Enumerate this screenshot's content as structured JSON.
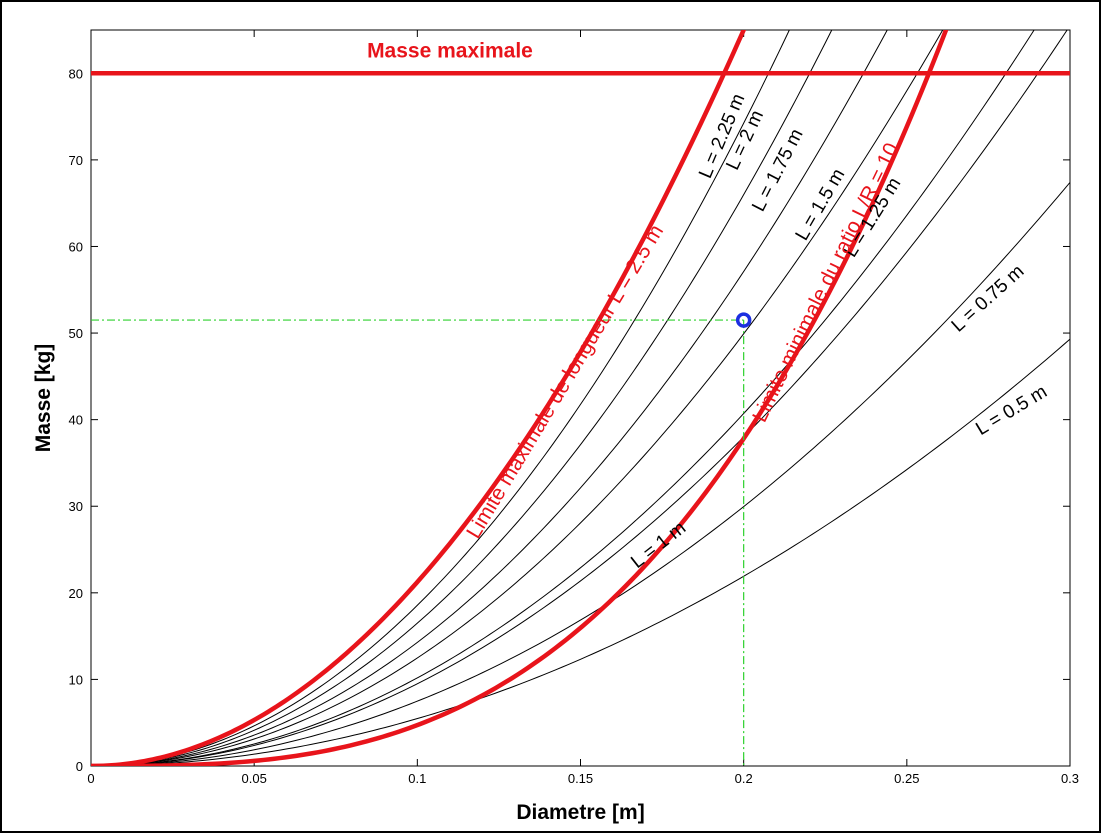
{
  "chart_data": {
    "type": "line",
    "xlabel": "Diametre [m]",
    "ylabel": "Masse [kg]",
    "xlim": [
      0,
      0.3
    ],
    "ylim": [
      0,
      85
    ],
    "x_ticks": [
      {
        "value": 0,
        "label": "0"
      },
      {
        "value": 0.05,
        "label": "0.05"
      },
      {
        "value": 0.1,
        "label": "0.1"
      },
      {
        "value": 0.15,
        "label": "0.15"
      },
      {
        "value": 0.2,
        "label": "0.2"
      },
      {
        "value": 0.25,
        "label": "0.25"
      },
      {
        "value": 0.3,
        "label": "0.3"
      }
    ],
    "y_ticks": [
      {
        "value": 0,
        "label": "0"
      },
      {
        "value": 10,
        "label": "10"
      },
      {
        "value": 20,
        "label": "20"
      },
      {
        "value": 30,
        "label": "30"
      },
      {
        "value": 40,
        "label": "40"
      },
      {
        "value": 50,
        "label": "50"
      },
      {
        "value": 60,
        "label": "60"
      },
      {
        "value": 70,
        "label": "70"
      },
      {
        "value": 80,
        "label": "80"
      }
    ],
    "grid": false,
    "colors": {
      "black": "#000000",
      "red": "#e8141b",
      "green": "#2dd12d",
      "blue": "#1c2fe0"
    },
    "series": [
      {
        "label": "L = 0.5 m",
        "x": [
          0,
          0.3
        ],
        "y": [
          0,
          49.3
        ],
        "exponent": 2,
        "color": "#000000"
      },
      {
        "label": "L = 0.75 m",
        "x": [
          0,
          0.3
        ],
        "y": [
          0,
          67.4
        ],
        "exponent": 2,
        "color": "#000000"
      },
      {
        "label": "L = 1 m",
        "x": [
          0,
          0.3
        ],
        "y": [
          0,
          85.5
        ],
        "exponent": 2,
        "color": "#000000"
      },
      {
        "label": "L = 1.25 m",
        "x": [
          0,
          0.289
        ],
        "y": [
          0,
          85
        ],
        "exponent": 2,
        "color": "#000000"
      },
      {
        "label": "L = 1.5 m",
        "x": [
          0,
          0.261
        ],
        "y": [
          0,
          85
        ],
        "exponent": 2,
        "color": "#000000"
      },
      {
        "label": "L = 1.75 m",
        "x": [
          0,
          0.244
        ],
        "y": [
          0,
          85
        ],
        "exponent": 2,
        "color": "#000000"
      },
      {
        "label": "L = 2 m",
        "x": [
          0,
          0.227
        ],
        "y": [
          0,
          85
        ],
        "exponent": 2,
        "color": "#000000"
      },
      {
        "label": "L = 2.25 m",
        "x": [
          0,
          0.214
        ],
        "y": [
          0,
          85
        ],
        "exponent": 2,
        "color": "#000000"
      },
      {
        "label": "Limite maximale de longueur L = 2.5 m",
        "x": [
          0,
          0.2
        ],
        "y": [
          0,
          85
        ],
        "exponent": 2,
        "color": "#e8141b"
      },
      {
        "label": "Limite minimale du ratio L/R = 10",
        "x": [
          0,
          0.262
        ],
        "y": [
          0,
          85
        ],
        "exponent": 3,
        "color": "#e8141b"
      },
      {
        "label": "Masse maximale",
        "x": [
          0,
          0.3
        ],
        "y": [
          80,
          80
        ],
        "color": "#e8141b"
      }
    ],
    "series_labels": [
      {
        "text": "L = 0.5 m",
        "x": 0.283,
        "y": 40.5,
        "angle": -31
      },
      {
        "text": "L = 0.75 m",
        "x": 0.276,
        "y": 53.5,
        "angle": -42
      },
      {
        "text": "L = 1 m",
        "x": 0.175,
        "y": 25,
        "angle": -38
      },
      {
        "text": "L = 1.25 m",
        "x": 0.241,
        "y": 63,
        "angle": -58
      },
      {
        "text": "L = 1.5 m",
        "x": 0.225,
        "y": 64.5,
        "angle": -60
      },
      {
        "text": "L = 1.75 m",
        "x": 0.212,
        "y": 68.5,
        "angle": -63
      },
      {
        "text": "L = 2 m",
        "x": 0.202,
        "y": 72,
        "angle": -65
      },
      {
        "text": "L = 2.25 m",
        "x": 0.195,
        "y": 72.5,
        "angle": -67
      },
      {
        "text": "Limite maximale de longueur L = 2.5 m",
        "x": 0.147,
        "y": 44,
        "angle": -59
      },
      {
        "text": "Limite minimale du ratio L/R = 10",
        "x": 0.227,
        "y": 55.5,
        "angle": -64
      },
      {
        "text": "Masse maximale",
        "x": 0.11,
        "y": 81.8,
        "angle": 0
      }
    ],
    "reference_lines": {
      "x": 0.2,
      "y": 51.5
    },
    "highlight_point": {
      "x": 0.2,
      "y": 51.5
    }
  }
}
